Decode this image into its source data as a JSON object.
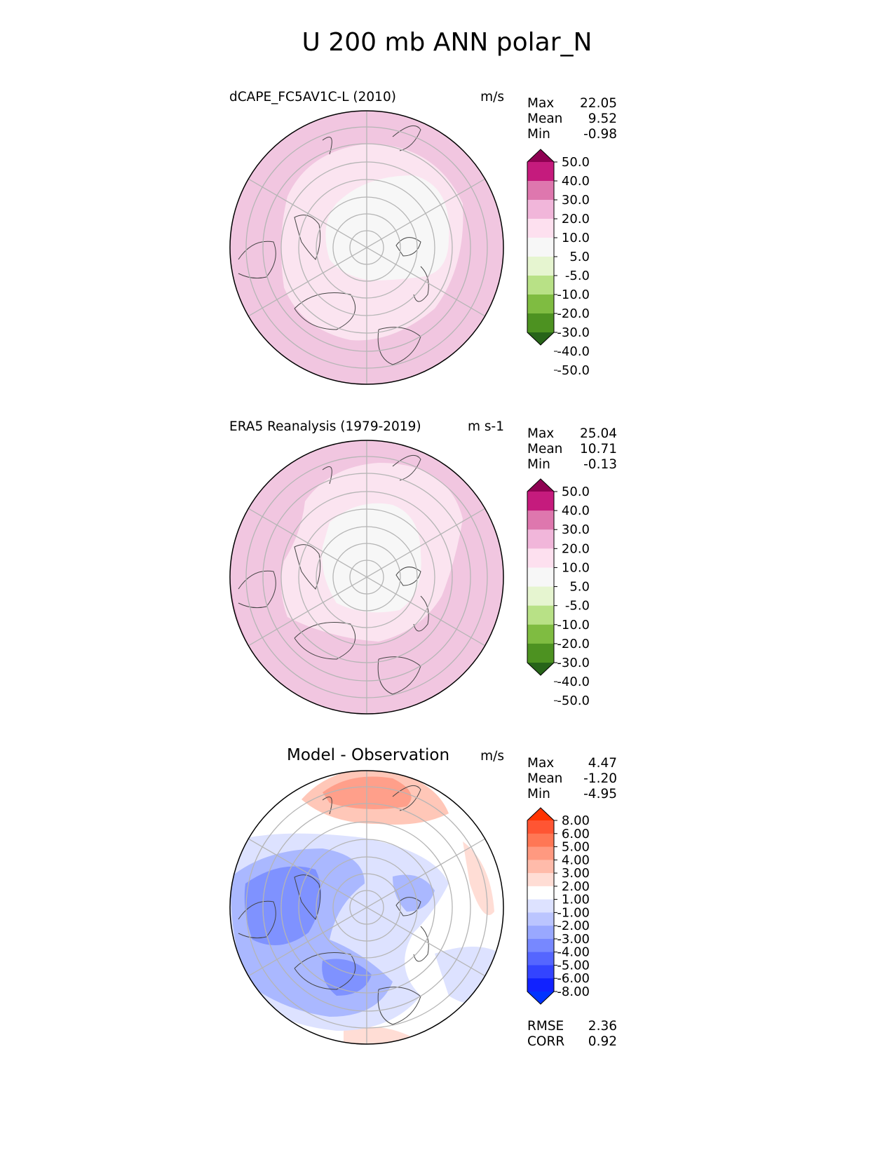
{
  "figure_title": "U 200 mb ANN polar_N",
  "chart_data": [
    {
      "type": "heatmap",
      "projection": "north-polar-stereographic",
      "title": "dCAPE_FC5AV1C-L (2010)",
      "units": "m/s",
      "stats": {
        "max_label": "Max",
        "max": "22.05",
        "mean_label": "Mean",
        "mean": "9.52",
        "min_label": "Min",
        "min": "-0.98"
      },
      "colorbar": {
        "ticks": [
          "50.0",
          "40.0",
          "30.0",
          "20.0",
          "10.0",
          "5.0",
          "-5.0",
          "-10.0",
          "-20.0",
          "-30.0",
          "-40.0",
          "-50.0"
        ],
        "colors": [
          "#8e0152",
          "#c51b7d",
          "#de77ae",
          "#f1b6da",
          "#fde0ef",
          "#f7f7f7",
          "#e6f5d0",
          "#b8e186",
          "#7fbc41",
          "#4d9221",
          "#276419"
        ],
        "extend": "both"
      }
    },
    {
      "type": "heatmap",
      "projection": "north-polar-stereographic",
      "title": "ERA5 Reanalysis (1979-2019)",
      "units": "m s-1",
      "stats": {
        "max_label": "Max",
        "max": "25.04",
        "mean_label": "Mean",
        "mean": "10.71",
        "min_label": "Min",
        "min": "-0.13"
      },
      "colorbar": {
        "ticks": [
          "50.0",
          "40.0",
          "30.0",
          "20.0",
          "10.0",
          "5.0",
          "-5.0",
          "-10.0",
          "-20.0",
          "-30.0",
          "-40.0",
          "-50.0"
        ],
        "colors": [
          "#8e0152",
          "#c51b7d",
          "#de77ae",
          "#f1b6da",
          "#fde0ef",
          "#f7f7f7",
          "#e6f5d0",
          "#b8e186",
          "#7fbc41",
          "#4d9221",
          "#276419"
        ],
        "extend": "both"
      }
    },
    {
      "type": "heatmap",
      "projection": "north-polar-stereographic",
      "title": "Model - Observation",
      "units": "m/s",
      "stats": {
        "max_label": "Max",
        "max": "4.47",
        "mean_label": "Mean",
        "mean": "-1.20",
        "min_label": "Min",
        "min": "-4.95"
      },
      "metrics": {
        "rmse_label": "RMSE",
        "rmse": "2.36",
        "corr_label": "CORR",
        "corr": "0.92"
      },
      "colorbar": {
        "ticks": [
          "8.00",
          "6.00",
          "5.00",
          "4.00",
          "3.00",
          "2.00",
          "1.00",
          "-1.00",
          "-2.00",
          "-3.00",
          "-4.00",
          "-5.00",
          "-6.00",
          "-8.00"
        ],
        "colors": [
          "#ff3300",
          "#ff5533",
          "#ff7755",
          "#ff9980",
          "#ffbbaa",
          "#ffddd5",
          "#ffffff",
          "#dde2ff",
          "#bbc5ff",
          "#99a8ff",
          "#7788ff",
          "#5566ff",
          "#3344ff",
          "#1122ff",
          "#0033ff"
        ],
        "extend": "both"
      }
    }
  ]
}
